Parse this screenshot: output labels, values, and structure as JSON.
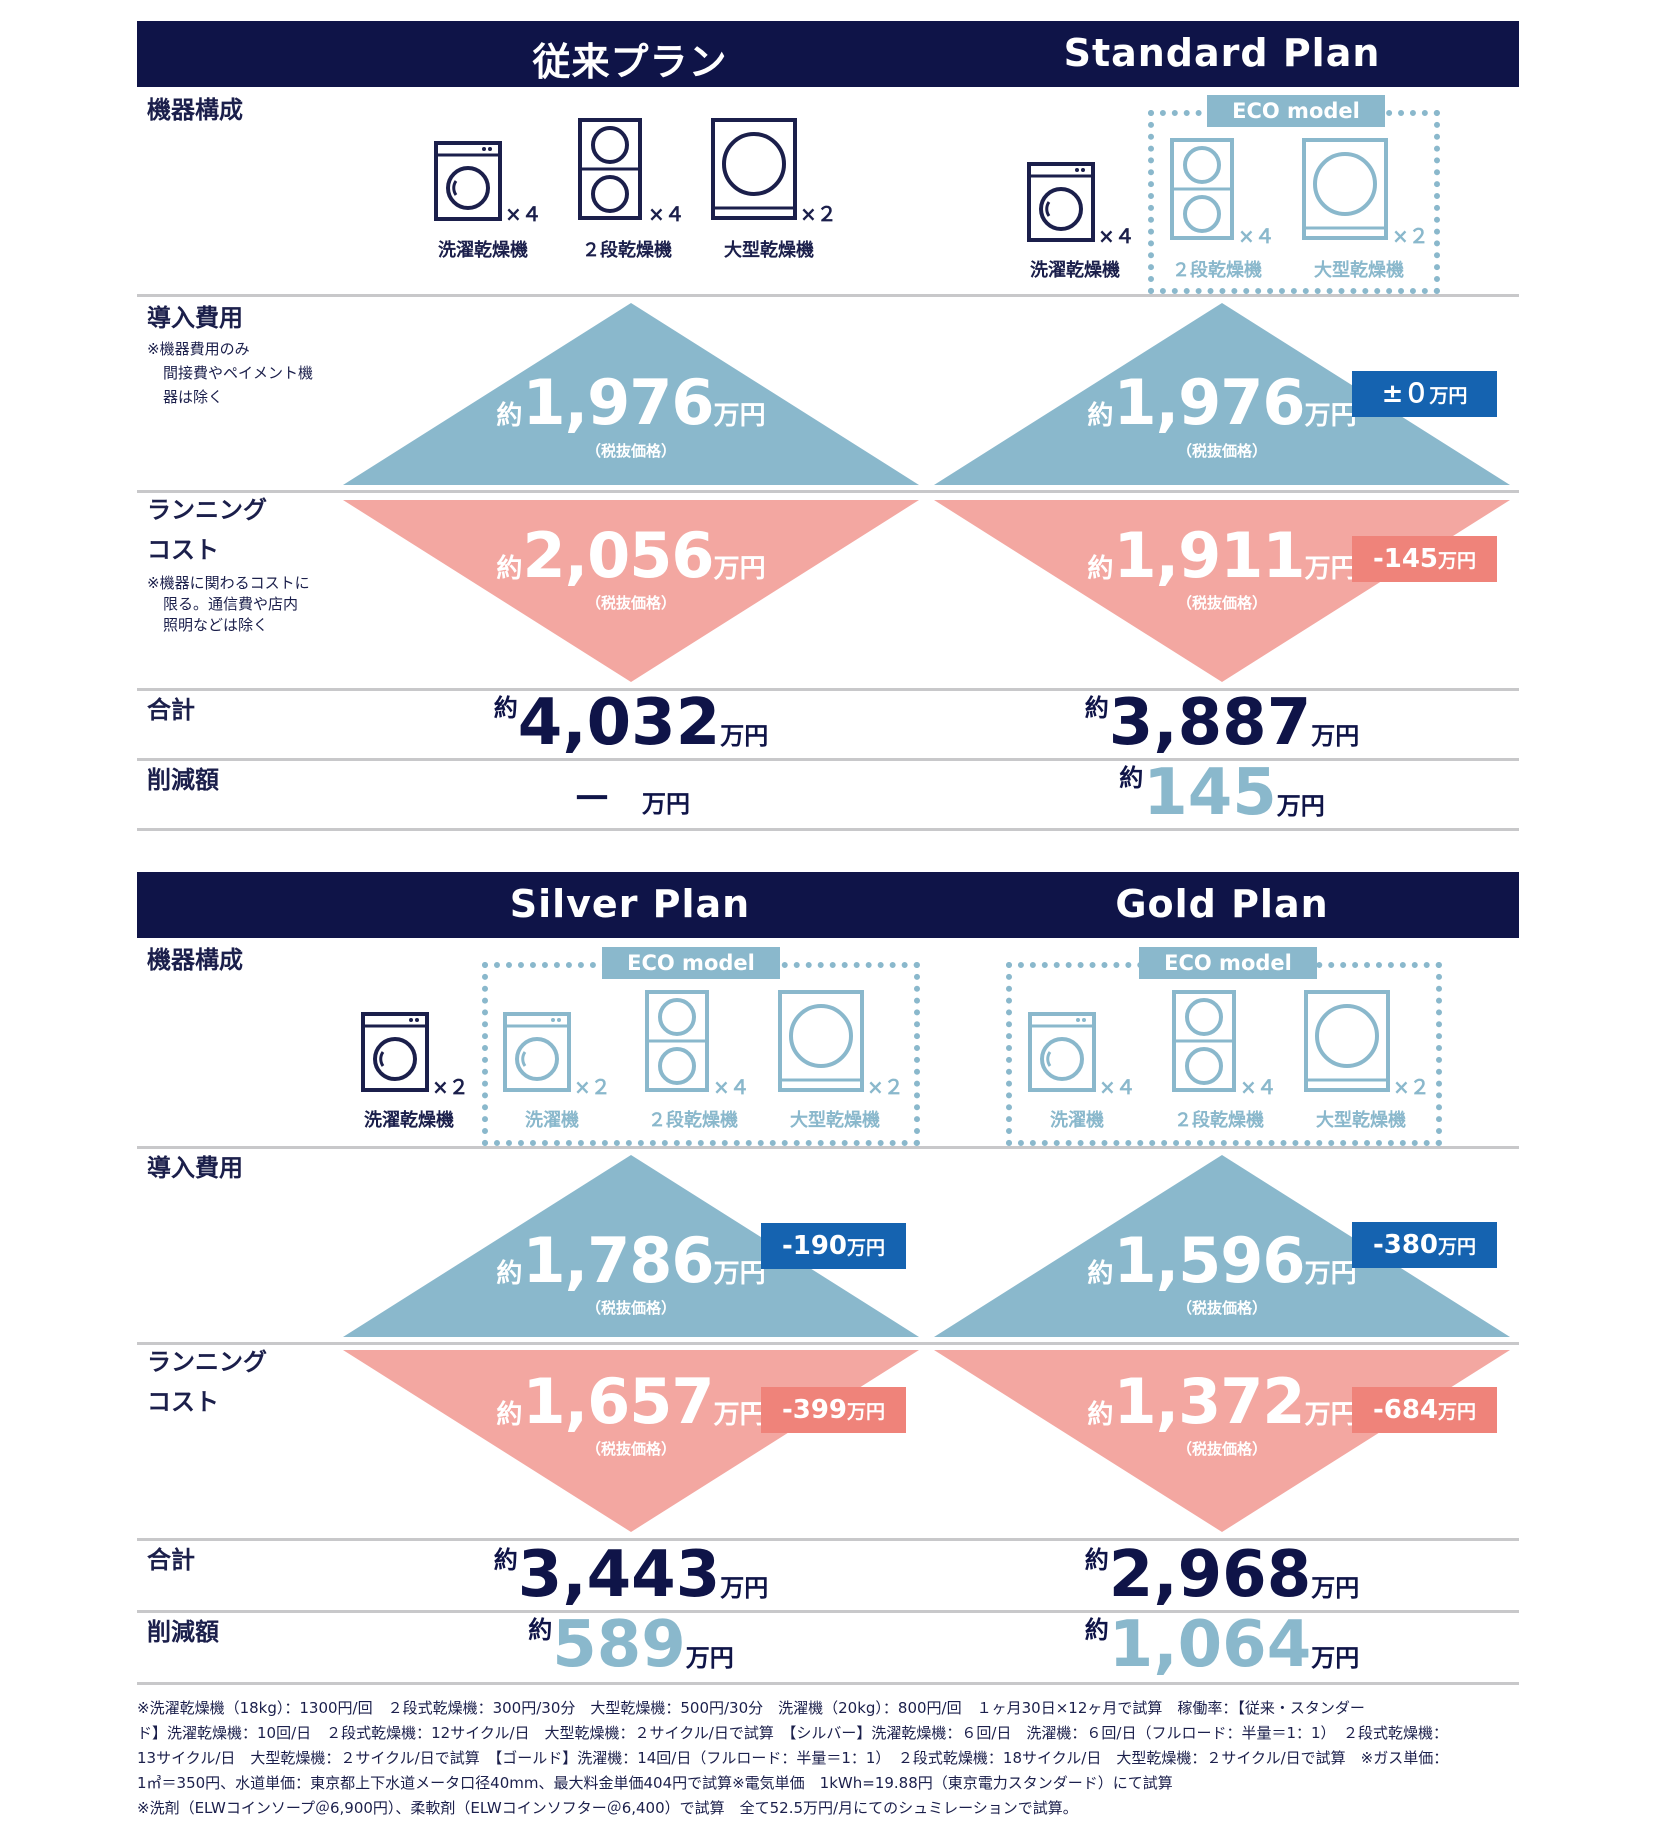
{
  "colors": {
    "navy": "#0f1448",
    "blue_tri": "#8ab8cc",
    "pink_tri": "#f3a7a1",
    "badge_blue": "#1563b0",
    "badge_red": "#ef837a"
  },
  "labels": {
    "equipment": "機器構成",
    "intro_cost": "導入費用",
    "intro_note": [
      "※機器費用のみ",
      "間接費やペイメント機",
      "器は除く"
    ],
    "running_1": "ランニング",
    "running_2": "コスト",
    "running_note": [
      "※機器に関わるコストに",
      "限る。通信費や店内",
      "照明などは除く"
    ],
    "total": "合計",
    "savings": "削減額",
    "yaku": "約",
    "manyen": "万円",
    "tax": "（税抜価格）",
    "eco": "ECO model",
    "washer_dryer": "洗濯乾燥機",
    "washer": "洗濯機",
    "stack_dryer": "２段乾燥機",
    "large_dryer": "大型乾燥機",
    "x4": "×４",
    "x2": "×２",
    "dash": "－"
  },
  "plans": {
    "conventional": {
      "title": "従来プラン",
      "intro": "1,976",
      "running": "2,056",
      "total": "4,032"
    },
    "standard": {
      "title": "Standard Plan",
      "intro": "1,976",
      "intro_diff": "±０",
      "running": "1,911",
      "running_diff": "-145",
      "total": "3,887",
      "savings": "145"
    },
    "silver": {
      "title": "Silver Plan",
      "intro": "1,786",
      "intro_diff": "-190",
      "running": "1,657",
      "running_diff": "-399",
      "total": "3,443",
      "savings": "589"
    },
    "gold": {
      "title": "Gold Plan",
      "intro": "1,596",
      "intro_diff": "-380",
      "running": "1,372",
      "running_diff": "-684",
      "total": "2,968",
      "savings": "1,064"
    }
  },
  "footnotes": [
    "※洗濯乾燥機（18kg）：1300円/回　２段式乾燥機：300円/30分　大型乾燥機：500円/30分　洗濯機（20kg）：800円/回　１ヶ月30日×12ヶ月で試算　稼働率：【従来・スタンダー",
    "ド】洗濯乾燥機：10回/日　２段式乾燥機：12サイクル/日　大型乾燥機：２サイクル/日で試算　【シルバー】洗濯乾燥機：６回/日　洗濯機：６回/日（フルロード：半量＝1：1）　２段式乾燥機：",
    "13サイクル/日　大型乾燥機：２サイクル/日で試算　【ゴールド】洗濯機：14回/日（フルロード：半量＝1：1）　２段式乾燥機：18サイクル/日　大型乾燥機：２サイクル/日で試算　※ガス単価：",
    "1㎥＝350円、水道単価：東京都上下水道メータ口径40mm、最大料金単価404円で試算※電気単価　1kWh=19.88円（東京電力スタンダード）にて試算",
    "※洗剤（ELWコインソープ＠6,900円）、柔軟剤（ELWコインソフター＠6,400）で試算　全て52.5万円/月にてのシュミレーションで試算。"
  ]
}
